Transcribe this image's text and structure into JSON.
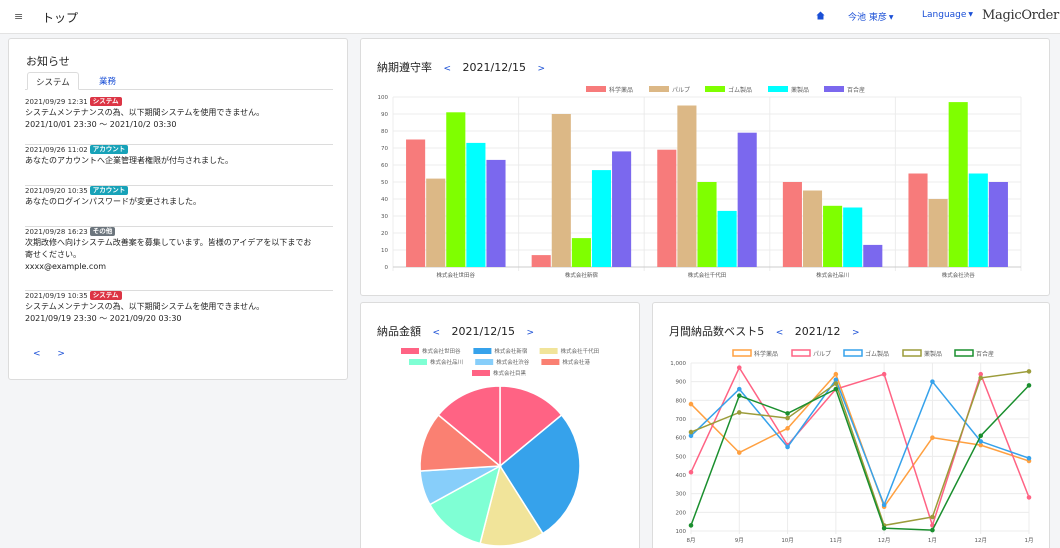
{
  "header": {
    "menu_glyph": "≡",
    "title": "トップ",
    "user": "今池 東彦",
    "language": "Language",
    "logo": "MagicOrder"
  },
  "news": {
    "title": "お知らせ",
    "tabs": [
      "システム",
      "業務"
    ],
    "items": [
      {
        "datetime": "2021/09/29 12:31",
        "badge": "システム",
        "badge_color": "#dc3545",
        "lines": [
          "システムメンテナンスの為、以下期間システムを使用できません。",
          "2021/10/01 23:30 〜 2021/10/2 03:30"
        ]
      },
      {
        "datetime": "2021/09/26 11:02",
        "badge": "アカウント",
        "badge_color": "#17a2b8",
        "lines": [
          "あなたのアカウントへ企業管理者権限が付与されました。"
        ]
      },
      {
        "datetime": "2021/09/20 10:35",
        "badge": "アカウント",
        "badge_color": "#17a2b8",
        "lines": [
          "あなたのログインパスワードが変更されました。"
        ]
      },
      {
        "datetime": "2021/09/28 16:23",
        "badge": "その他",
        "badge_color": "#6c757d",
        "lines": [
          "次期改修へ向けシステム改善案を募集しています。皆様のアイデアを以下までお",
          "寄せください。",
          "xxxx@example.com"
        ]
      },
      {
        "datetime": "2021/09/19 10:35",
        "badge": "システム",
        "badge_color": "#dc3545",
        "lines": [
          "システムメンテナンスの為、以下期間システムを使用できません。",
          "2021/09/19 23:30 〜 2021/09/20 03:30"
        ]
      }
    ],
    "prev": "<",
    "next": ">"
  },
  "delivery_rate": {
    "title": "納期遵守率",
    "date": "2021/12/15",
    "prev": "<",
    "next": ">"
  },
  "delivery_amount": {
    "title": "納品金額",
    "date": "2021/12/15",
    "prev": "<",
    "next": ">"
  },
  "monthly_best": {
    "title": "月間納品数ベスト5",
    "date": "2021/12",
    "prev": "<",
    "next": ">"
  },
  "chart_data": [
    {
      "type": "bar",
      "categories": [
        "株式会社世田谷",
        "株式会社新宿",
        "株式会社千代田",
        "株式会社品川",
        "株式会社渋谷"
      ],
      "series": [
        {
          "name": "科学薬品",
          "color": "#f77b7b",
          "values": [
            75,
            7,
            69,
            50,
            55
          ]
        },
        {
          "name": "パルプ",
          "color": "#dcb886",
          "values": [
            52,
            90,
            95,
            45,
            40
          ]
        },
        {
          "name": "ゴム製品",
          "color": "#7fff00",
          "values": [
            91,
            17,
            50,
            36,
            97
          ]
        },
        {
          "name": "薬製品",
          "color": "#00ffff",
          "values": [
            73,
            57,
            33,
            35,
            55
          ]
        },
        {
          "name": "百合産",
          "color": "#7b68ee",
          "values": [
            63,
            68,
            79,
            13,
            50
          ]
        }
      ],
      "ylim": [
        0,
        100
      ],
      "yticks": [
        0,
        10,
        20,
        30,
        40,
        50,
        60,
        70,
        80,
        90,
        100
      ],
      "legend": "top"
    },
    {
      "type": "pie",
      "labels": [
        "株式会社世田谷",
        "株式会社新宿",
        "株式会社千代田",
        "株式会社品川",
        "株式会社渋谷",
        "株式会社港",
        "株式会社目黒"
      ],
      "values": [
        14,
        27,
        13,
        13,
        7,
        12,
        14
      ],
      "colors": [
        "#ff6384",
        "#36a2eb",
        "#f1e49a",
        "#7fffd4",
        "#87cefa",
        "#fa8072",
        "#ff6384"
      ],
      "legend": "top"
    },
    {
      "type": "line",
      "x": [
        "8月",
        "9月",
        "10月",
        "11月",
        "12月",
        "1月",
        "12月",
        "1月"
      ],
      "series": [
        {
          "name": "科学薬品",
          "color": "#ffa040",
          "values": [
            780,
            520,
            650,
            940,
            230,
            600,
            560,
            475
          ]
        },
        {
          "name": "パルプ",
          "color": "#ff6384",
          "values": [
            415,
            975,
            560,
            860,
            940,
            130,
            940,
            280
          ]
        },
        {
          "name": "ゴム製品",
          "color": "#36a2eb",
          "values": [
            610,
            860,
            550,
            910,
            240,
            900,
            580,
            490
          ]
        },
        {
          "name": "薬製品",
          "color": "#9c9c3a",
          "values": [
            630,
            735,
            705,
            890,
            130,
            175,
            920,
            955
          ]
        },
        {
          "name": "百合産",
          "color": "#1a8f2e",
          "values": [
            130,
            825,
            730,
            860,
            115,
            105,
            610,
            880
          ]
        }
      ],
      "ylim": [
        100,
        1000
      ],
      "yticks": [
        "100",
        "200",
        "300",
        "400",
        "500",
        "600",
        "700",
        "800",
        "900",
        "1,000"
      ],
      "legend": "top"
    }
  ]
}
